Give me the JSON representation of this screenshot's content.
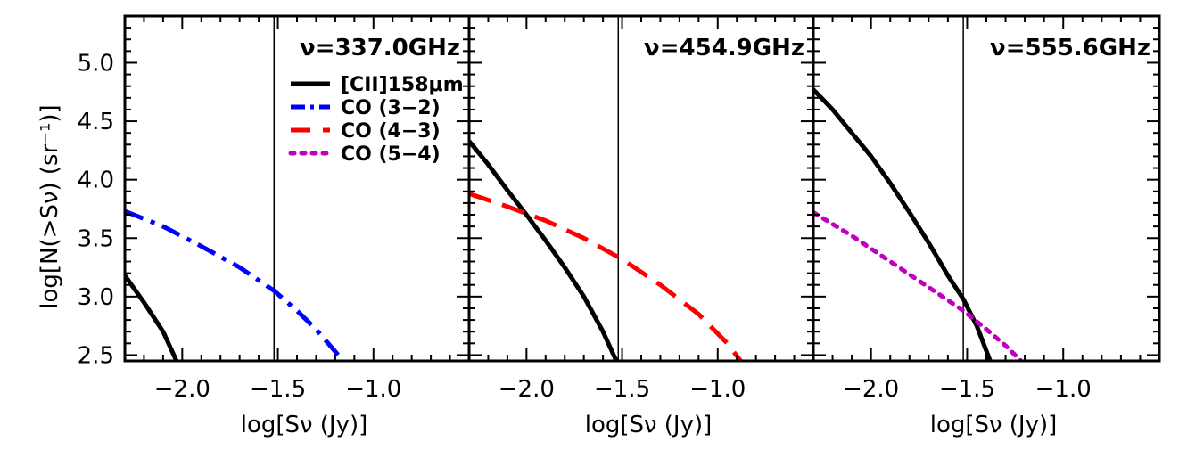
{
  "colors": {
    "cii": "#000000",
    "co32": "#0000ff",
    "co43": "#ff0000",
    "co54": "#c000c0",
    "frame": "#000000"
  },
  "legend": {
    "entries": [
      {
        "label": "[CII]158μm",
        "series": "cii"
      },
      {
        "label": "CO (3−2)",
        "series": "co32"
      },
      {
        "label": "CO (4−3)",
        "series": "co43"
      },
      {
        "label": "CO (5−4)",
        "series": "co54"
      }
    ]
  },
  "chart_data": [
    {
      "type": "line",
      "title": "ν=337.0GHz",
      "xlabel": "log[Sν (Jy)]",
      "ylabel": "log[N(>Sν) (sr⁻¹)]",
      "xlim": [
        -2.3,
        -0.5
      ],
      "ylim": [
        2.45,
        5.4
      ],
      "xticks": [
        -2.0,
        -1.5,
        -1.0
      ],
      "xtick_labels": [
        "−2.0",
        "−1.5",
        "−1.0"
      ],
      "yticks": [
        2.5,
        3.0,
        3.5,
        4.0,
        4.5,
        5.0
      ],
      "ytick_labels": [
        "2.5",
        "3.0",
        "3.5",
        "4.0",
        "4.5",
        "5.0"
      ],
      "vline": -1.52,
      "series": [
        {
          "name": "[CII]158μm",
          "color_key": "cii",
          "style": "solid",
          "x": [
            -2.3,
            -2.2,
            -2.1,
            -2.03
          ],
          "y": [
            3.18,
            2.95,
            2.7,
            2.45
          ]
        },
        {
          "name": "CO (3−2)",
          "color_key": "co32",
          "style": "dashdot",
          "x": [
            -2.3,
            -2.1,
            -1.9,
            -1.7,
            -1.52,
            -1.4,
            -1.3,
            -1.2,
            -1.16
          ],
          "y": [
            3.73,
            3.6,
            3.43,
            3.25,
            3.05,
            2.88,
            2.72,
            2.53,
            2.45
          ]
        }
      ]
    },
    {
      "type": "line",
      "title": "ν=454.9GHz",
      "xlabel": "log[Sν (Jy)]",
      "ylabel": "",
      "xlim": [
        -2.3,
        -0.5
      ],
      "ylim": [
        2.45,
        5.4
      ],
      "xticks": [
        -2.0,
        -1.5,
        -1.0
      ],
      "xtick_labels": [
        "−2.0",
        "−1.5",
        "−1.0"
      ],
      "yticks": [
        2.5,
        3.0,
        3.5,
        4.0,
        4.5,
        5.0
      ],
      "ytick_labels": [],
      "vline": -1.52,
      "series": [
        {
          "name": "[CII]158μm",
          "color_key": "cii",
          "style": "solid",
          "x": [
            -2.3,
            -2.2,
            -2.1,
            -2.0,
            -1.9,
            -1.8,
            -1.7,
            -1.6,
            -1.53
          ],
          "y": [
            4.33,
            4.13,
            3.91,
            3.7,
            3.48,
            3.25,
            3.0,
            2.7,
            2.45
          ]
        },
        {
          "name": "CO (4−3)",
          "color_key": "co43",
          "style": "dashed",
          "x": [
            -2.3,
            -2.1,
            -1.9,
            -1.7,
            -1.5,
            -1.3,
            -1.1,
            -0.95,
            -0.88
          ],
          "y": [
            3.88,
            3.77,
            3.65,
            3.5,
            3.32,
            3.1,
            2.85,
            2.6,
            2.45
          ]
        }
      ]
    },
    {
      "type": "line",
      "title": "ν=555.6GHz",
      "xlabel": "log[Sν (Jy)]",
      "ylabel": "",
      "xlim": [
        -2.3,
        -0.5
      ],
      "ylim": [
        2.45,
        5.4
      ],
      "xticks": [
        -2.0,
        -1.5,
        -1.0
      ],
      "xtick_labels": [
        "−2.0",
        "−1.5",
        "−1.0"
      ],
      "yticks": [
        2.5,
        3.0,
        3.5,
        4.0,
        4.5,
        5.0
      ],
      "ytick_labels": [],
      "vline": -1.52,
      "series": [
        {
          "name": "[CII]158μm",
          "color_key": "cii",
          "style": "solid",
          "x": [
            -2.3,
            -2.2,
            -2.1,
            -2.0,
            -1.9,
            -1.8,
            -1.7,
            -1.6,
            -1.52,
            -1.45,
            -1.38
          ],
          "y": [
            4.77,
            4.6,
            4.4,
            4.2,
            3.97,
            3.72,
            3.46,
            3.18,
            2.98,
            2.75,
            2.45
          ]
        },
        {
          "name": "CO (5−4)",
          "color_key": "co54",
          "style": "dotted",
          "x": [
            -2.3,
            -2.1,
            -1.9,
            -1.7,
            -1.52,
            -1.4,
            -1.3,
            -1.22
          ],
          "y": [
            3.72,
            3.52,
            3.3,
            3.08,
            2.88,
            2.72,
            2.58,
            2.45
          ]
        }
      ]
    }
  ]
}
